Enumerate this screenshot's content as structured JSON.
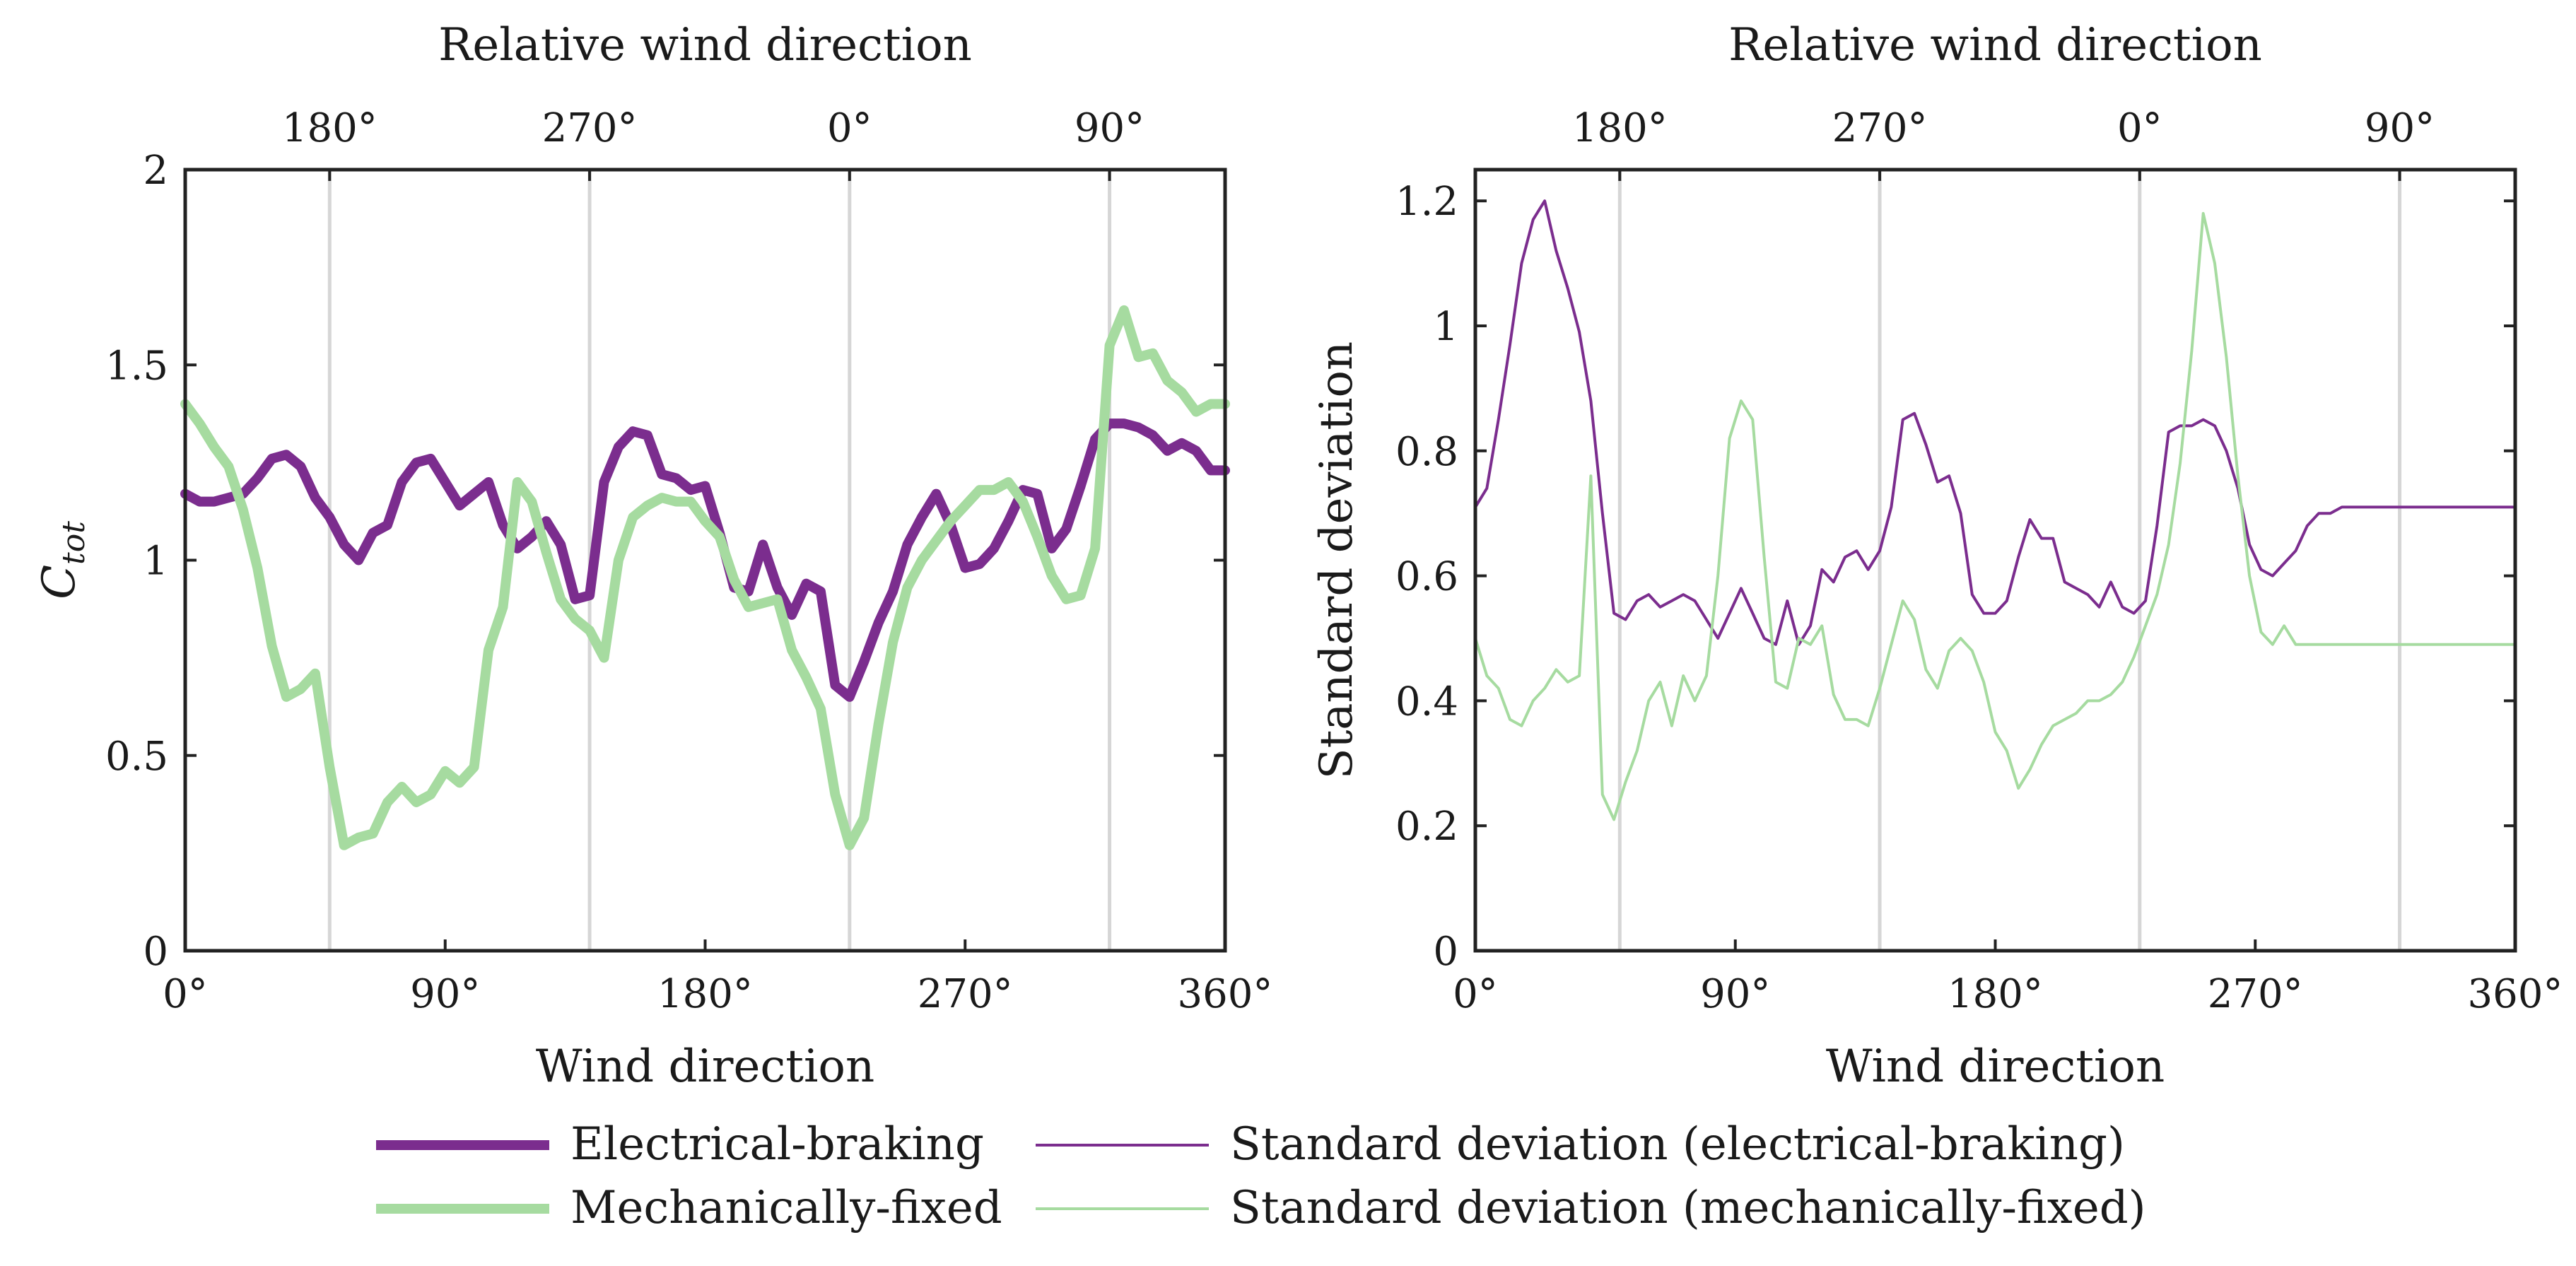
{
  "chart_data": [
    {
      "type": "line",
      "panel": "left",
      "xlabel": "Wind direction",
      "top_xlabel": "Relative wind direction",
      "ylabel": "C",
      "ylabel_subscript": "tot",
      "xlim": [
        0,
        360
      ],
      "ylim": [
        0,
        2
      ],
      "xticks": [
        0,
        90,
        180,
        270,
        360
      ],
      "xtick_labels": [
        "0°",
        "90°",
        "180°",
        "270°",
        "360°"
      ],
      "yticks": [
        0,
        0.5,
        1,
        1.5,
        2
      ],
      "ytick_labels": [
        "0",
        "0.5",
        "1",
        "1.5",
        "2"
      ],
      "top_ticks": [
        50,
        140,
        230,
        320
      ],
      "top_tick_labels": [
        "180°",
        "270°",
        "0°",
        "90°"
      ],
      "grid_x": [
        50,
        140,
        230,
        320
      ],
      "series": [
        {
          "name": "Electrical-braking",
          "color": "#7b2d8e",
          "weight": "thick",
          "x": [
            0,
            5,
            10,
            15,
            20,
            25,
            30,
            35,
            40,
            45,
            50,
            55,
            60,
            65,
            70,
            75,
            80,
            85,
            90,
            95,
            100,
            105,
            110,
            115,
            120,
            125,
            130,
            135,
            140,
            145,
            150,
            155,
            160,
            165,
            170,
            175,
            180,
            185,
            190,
            195,
            200,
            205,
            210,
            215,
            220,
            225,
            230,
            235,
            240,
            245,
            250,
            255,
            260,
            265,
            270,
            275,
            280,
            285,
            290,
            295,
            300,
            305,
            310,
            315,
            320,
            325,
            330,
            335,
            340,
            345,
            350,
            355,
            360
          ],
          "values": [
            1.17,
            1.15,
            1.15,
            1.16,
            1.17,
            1.21,
            1.26,
            1.27,
            1.24,
            1.16,
            1.11,
            1.04,
            1.0,
            1.07,
            1.09,
            1.2,
            1.25,
            1.26,
            1.2,
            1.14,
            1.17,
            1.2,
            1.09,
            1.03,
            1.06,
            1.1,
            1.04,
            0.9,
            0.91,
            1.2,
            1.29,
            1.33,
            1.32,
            1.22,
            1.21,
            1.18,
            1.19,
            1.07,
            0.93,
            0.92,
            1.04,
            0.93,
            0.86,
            0.94,
            0.92,
            0.68,
            0.65,
            0.74,
            0.84,
            0.92,
            1.04,
            1.11,
            1.17,
            1.09,
            0.98,
            0.99,
            1.03,
            1.1,
            1.18,
            1.17,
            1.03,
            1.08,
            1.19,
            1.31,
            1.35,
            1.35,
            1.34,
            1.32,
            1.28,
            1.3,
            1.28,
            1.23,
            1.23
          ]
        },
        {
          "name": "Mechanically-fixed",
          "color": "#a6dba0",
          "weight": "thick",
          "x": [
            0,
            5,
            10,
            15,
            20,
            25,
            30,
            35,
            40,
            45,
            50,
            55,
            60,
            65,
            70,
            75,
            80,
            85,
            90,
            95,
            100,
            105,
            110,
            115,
            120,
            125,
            130,
            135,
            140,
            145,
            150,
            155,
            160,
            165,
            170,
            175,
            180,
            185,
            190,
            195,
            200,
            205,
            210,
            215,
            220,
            225,
            230,
            235,
            240,
            245,
            250,
            255,
            260,
            265,
            270,
            275,
            280,
            285,
            290,
            295,
            300,
            305,
            310,
            315,
            320,
            325,
            330,
            335,
            340,
            345,
            350,
            355,
            360
          ],
          "values": [
            1.4,
            1.35,
            1.29,
            1.24,
            1.13,
            0.98,
            0.78,
            0.65,
            0.67,
            0.71,
            0.47,
            0.27,
            0.29,
            0.3,
            0.38,
            0.42,
            0.38,
            0.4,
            0.46,
            0.43,
            0.47,
            0.77,
            0.88,
            1.2,
            1.15,
            1.02,
            0.9,
            0.85,
            0.82,
            0.75,
            1.0,
            1.11,
            1.14,
            1.16,
            1.15,
            1.15,
            1.1,
            1.06,
            0.95,
            0.88,
            0.89,
            0.9,
            0.77,
            0.7,
            0.62,
            0.4,
            0.27,
            0.34,
            0.58,
            0.79,
            0.93,
            1.0,
            1.05,
            1.1,
            1.14,
            1.18,
            1.18,
            1.2,
            1.15,
            1.06,
            0.96,
            0.9,
            0.91,
            1.03,
            1.55,
            1.64,
            1.52,
            1.53,
            1.46,
            1.43,
            1.38,
            1.4,
            1.4
          ]
        }
      ]
    },
    {
      "type": "line",
      "panel": "right",
      "xlabel": "Wind direction",
      "top_xlabel": "Relative wind direction",
      "ylabel": "Standard deviation",
      "xlim": [
        0,
        360
      ],
      "ylim": [
        0,
        1.25
      ],
      "xticks": [
        0,
        90,
        180,
        270,
        360
      ],
      "xtick_labels": [
        "0°",
        "90°",
        "180°",
        "270°",
        "360°"
      ],
      "yticks": [
        0,
        0.2,
        0.4,
        0.6,
        0.8,
        1,
        1.2
      ],
      "ytick_labels": [
        "0",
        "0.2",
        "0.4",
        "0.6",
        "0.8",
        "1",
        "1.2"
      ],
      "top_ticks": [
        50,
        140,
        230,
        320
      ],
      "top_tick_labels": [
        "180°",
        "270°",
        "0°",
        "90°"
      ],
      "grid_x": [
        50,
        140,
        230,
        320
      ],
      "series": [
        {
          "name": "Standard deviation (electrical-braking)",
          "color": "#7b2d8e",
          "weight": "thin",
          "x": [
            0,
            4,
            8,
            12,
            16,
            20,
            24,
            28,
            32,
            36,
            40,
            44,
            48,
            52,
            56,
            60,
            64,
            68,
            72,
            76,
            80,
            84,
            88,
            92,
            96,
            100,
            104,
            108,
            112,
            116,
            120,
            124,
            128,
            132,
            136,
            140,
            144,
            148,
            152,
            156,
            160,
            164,
            168,
            172,
            176,
            180,
            184,
            188,
            192,
            196,
            200,
            204,
            208,
            212,
            216,
            220,
            224,
            228,
            232,
            236,
            240,
            244,
            248,
            252,
            256,
            260,
            264,
            268,
            272,
            276,
            280,
            284,
            288,
            292,
            296,
            300,
            304,
            308,
            312,
            316,
            320,
            324,
            328,
            332,
            336,
            340,
            344,
            348,
            352,
            356,
            360
          ],
          "values": [
            0.71,
            0.74,
            0.85,
            0.97,
            1.1,
            1.17,
            1.2,
            1.12,
            1.06,
            0.99,
            0.88,
            0.7,
            0.54,
            0.53,
            0.56,
            0.57,
            0.55,
            0.56,
            0.57,
            0.56,
            0.53,
            0.5,
            0.54,
            0.58,
            0.54,
            0.5,
            0.49,
            0.56,
            0.49,
            0.52,
            0.61,
            0.59,
            0.63,
            0.64,
            0.61,
            0.64,
            0.71,
            0.85,
            0.86,
            0.81,
            0.75,
            0.76,
            0.7,
            0.57,
            0.54,
            0.54,
            0.56,
            0.63,
            0.69,
            0.66,
            0.66,
            0.59,
            0.58,
            0.57,
            0.55,
            0.59,
            0.55,
            0.54,
            0.56,
            0.68,
            0.83,
            0.84,
            0.84,
            0.85,
            0.84,
            0.8,
            0.74,
            0.65,
            0.61,
            0.6,
            0.62,
            0.64,
            0.68,
            0.7,
            0.7,
            0.71,
            0.71,
            0.71,
            0.71,
            0.71,
            0.71,
            0.71,
            0.71,
            0.71,
            0.71,
            0.71,
            0.71,
            0.71,
            0.71,
            0.71,
            0.71
          ]
        },
        {
          "name": "Standard deviation (mechanically-fixed)",
          "color": "#a6dba0",
          "weight": "thin",
          "x": [
            0,
            4,
            8,
            12,
            16,
            20,
            24,
            28,
            32,
            36,
            40,
            44,
            48,
            52,
            56,
            60,
            64,
            68,
            72,
            76,
            80,
            84,
            88,
            92,
            96,
            100,
            104,
            108,
            112,
            116,
            120,
            124,
            128,
            132,
            136,
            140,
            144,
            148,
            152,
            156,
            160,
            164,
            168,
            172,
            176,
            180,
            184,
            188,
            192,
            196,
            200,
            204,
            208,
            212,
            216,
            220,
            224,
            228,
            232,
            236,
            240,
            244,
            248,
            252,
            256,
            260,
            264,
            268,
            272,
            276,
            280,
            284,
            288,
            292,
            296,
            300,
            304,
            308,
            312,
            316,
            320,
            324,
            328,
            332,
            336,
            340,
            344,
            348,
            352,
            356,
            360
          ],
          "values": [
            0.5,
            0.44,
            0.42,
            0.37,
            0.36,
            0.4,
            0.42,
            0.45,
            0.43,
            0.44,
            0.76,
            0.25,
            0.21,
            0.27,
            0.32,
            0.4,
            0.43,
            0.36,
            0.44,
            0.4,
            0.44,
            0.6,
            0.82,
            0.88,
            0.85,
            0.63,
            0.43,
            0.42,
            0.5,
            0.49,
            0.52,
            0.41,
            0.37,
            0.37,
            0.36,
            0.42,
            0.49,
            0.56,
            0.53,
            0.45,
            0.42,
            0.48,
            0.5,
            0.48,
            0.43,
            0.35,
            0.32,
            0.26,
            0.29,
            0.33,
            0.36,
            0.37,
            0.38,
            0.4,
            0.4,
            0.41,
            0.43,
            0.47,
            0.52,
            0.57,
            0.65,
            0.78,
            0.96,
            1.18,
            1.1,
            0.95,
            0.76,
            0.6,
            0.51,
            0.49,
            0.52,
            0.49,
            0.49,
            0.49,
            0.49,
            0.49,
            0.49,
            0.49,
            0.49,
            0.49,
            0.49,
            0.49,
            0.49,
            0.49,
            0.49,
            0.49,
            0.49,
            0.49,
            0.49,
            0.49,
            0.49
          ]
        }
      ]
    }
  ],
  "legend": [
    {
      "label": "Electrical-braking",
      "color": "#7b2d8e",
      "weight": "thick"
    },
    {
      "label": "Mechanically-fixed",
      "color": "#a6dba0",
      "weight": "thick"
    },
    {
      "label": "Standard deviation (electrical-braking)",
      "color": "#7b2d8e",
      "weight": "thin"
    },
    {
      "label": "Standard deviation (mechanically-fixed)",
      "color": "#a6dba0",
      "weight": "thin"
    }
  ]
}
